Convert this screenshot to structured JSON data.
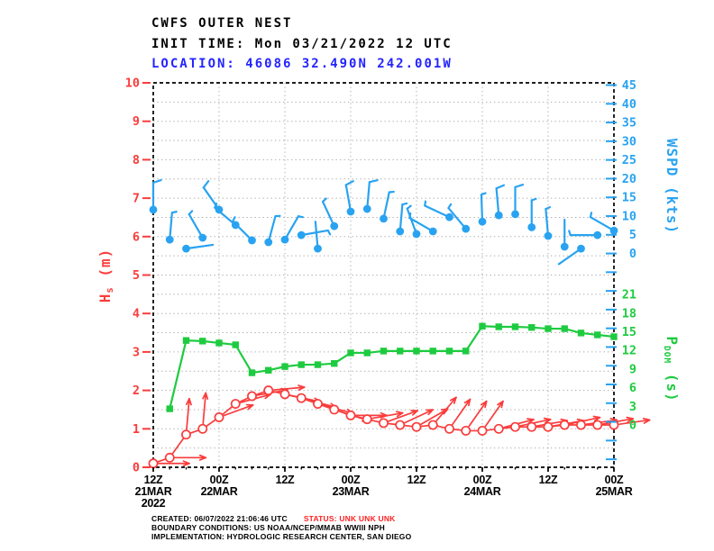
{
  "header": {
    "title": "CWFS OUTER NEST",
    "init_time": "INIT TIME: Mon 03/21/2022 12 UTC",
    "location_label": "LOCATION: ",
    "station_id": "46086",
    "coords": " 32.490N 242.001W"
  },
  "footer": {
    "created": "CREATED: 06/07/2022 21:06:46 UTC",
    "status": "STATUS: UNK UNK UNK",
    "boundary": "BOUNDARY CONDITIONS: US NOAA/NCEP/MMAB WWIII NPH",
    "implementation": "IMPLEMENTATION: HYDROLOGIC RESEARCH CENTER, SAN DIEGO"
  },
  "colors": {
    "hs_red": "#fa3c3c",
    "wspd_cyan": "#29a3f1",
    "pdom_green": "#1ecb40",
    "location_blue": "#2424ff",
    "status_red": "#ff2222",
    "grid_gray": "#aaaaaa",
    "frame_black": "#000000"
  },
  "chart_data": {
    "type": "line",
    "title": "CWFS OUTER NEST",
    "x_axis": {
      "range_hours": [
        0,
        84
      ],
      "minor_tick_hours": 3,
      "ticks": [
        {
          "hour": 0,
          "z": "12Z",
          "date": "21MAR",
          "year": "2022"
        },
        {
          "hour": 12,
          "z": "00Z",
          "date": "22MAR",
          "year": ""
        },
        {
          "hour": 24,
          "z": "12Z",
          "date": "",
          "year": ""
        },
        {
          "hour": 36,
          "z": "00Z",
          "date": "23MAR",
          "year": ""
        },
        {
          "hour": 48,
          "z": "12Z",
          "date": "",
          "year": ""
        },
        {
          "hour": 60,
          "z": "00Z",
          "date": "24MAR",
          "year": ""
        },
        {
          "hour": 72,
          "z": "12Z",
          "date": "",
          "year": ""
        },
        {
          "hour": 84,
          "z": "00Z",
          "date": "25MAR",
          "year": ""
        }
      ]
    },
    "left_axis": {
      "label_main": "H",
      "label_sub": "s",
      "label_units": " (m)",
      "range": [
        0,
        10
      ],
      "ticks": [
        "0",
        "1",
        "2",
        "3",
        "4",
        "5",
        "6",
        "7",
        "8",
        "9",
        "10"
      ]
    },
    "right_axis_wspd": {
      "label": "WSPD (kts)",
      "range": [
        0,
        45
      ],
      "ticks": [
        "0",
        "5",
        "10",
        "15",
        "20",
        "25",
        "30",
        "35",
        "40",
        "45"
      ]
    },
    "right_axis_pdom": {
      "label_main": "P",
      "label_sub": "DOM",
      "label_units": " (s)",
      "range": [
        0,
        21
      ],
      "ticks": [
        "0",
        "3",
        "6",
        "9",
        "12",
        "15",
        "18",
        "21"
      ]
    },
    "series": [
      {
        "name": "significant_wave_height",
        "units": "m",
        "axis": "hs",
        "marker": "open-circle",
        "style": "line-with-direction-arrows",
        "hours": [
          0,
          3,
          6,
          9,
          12,
          15,
          18,
          21,
          24,
          27,
          30,
          33,
          36,
          39,
          42,
          45,
          48,
          51,
          54,
          57,
          60,
          63,
          66,
          69,
          72,
          75,
          78,
          81,
          84
        ],
        "values": [
          0.1,
          0.25,
          0.85,
          1.0,
          1.3,
          1.65,
          1.85,
          2.0,
          1.9,
          1.8,
          1.65,
          1.5,
          1.35,
          1.25,
          1.15,
          1.1,
          1.05,
          1.1,
          1.0,
          0.95,
          0.95,
          1.0,
          1.05,
          1.05,
          1.05,
          1.1,
          1.1,
          1.1,
          1.1
        ],
        "arrow_deg": [
          0,
          0,
          85,
          85,
          20,
          15,
          10,
          5,
          -12,
          -15,
          -15,
          -18,
          0,
          10,
          20,
          25,
          30,
          50,
          55,
          55,
          55,
          15,
          12,
          10,
          10,
          12,
          8,
          10,
          8
        ]
      },
      {
        "name": "wind_speed",
        "units": "kts",
        "axis": "wspd",
        "marker": "dot",
        "style": "wind-barbs",
        "hours": [
          0,
          3,
          6,
          9,
          12,
          15,
          18,
          21,
          24,
          27,
          30,
          33,
          36,
          39,
          42,
          45,
          48,
          51,
          54,
          57,
          60,
          63,
          66,
          69,
          72,
          75,
          78,
          81,
          84
        ],
        "values": [
          11.7,
          3.7,
          1.3,
          4.2,
          11.7,
          7.6,
          3.5,
          3.0,
          3.7,
          4.9,
          1.3,
          7.3,
          11.2,
          11.9,
          9.3,
          5.9,
          5.2,
          5.9,
          9.7,
          6.6,
          8.5,
          10.2,
          10.5,
          7.0,
          4.7,
          1.8,
          1.3,
          4.9,
          6.1
        ],
        "barb_deg": [
          90,
          85,
          8,
          120,
          125,
          140,
          135,
          75,
          60,
          10,
          95,
          115,
          100,
          85,
          78,
          85,
          110,
          150,
          155,
          130,
          92,
          95,
          90,
          90,
          95,
          90,
          215,
          180,
          150
        ]
      },
      {
        "name": "dominant_period",
        "units": "s",
        "axis": "pdom",
        "marker": "square",
        "style": "line",
        "hours": [
          3,
          6,
          9,
          12,
          15,
          18,
          21,
          24,
          27,
          30,
          33,
          36,
          39,
          42,
          45,
          48,
          51,
          54,
          57,
          60,
          63,
          66,
          69,
          72,
          75,
          78,
          81,
          84
        ],
        "values": [
          2.6,
          13.6,
          13.5,
          13.2,
          12.9,
          8.4,
          8.8,
          9.4,
          9.7,
          9.7,
          9.9,
          11.6,
          11.6,
          11.9,
          11.9,
          11.9,
          11.9,
          11.9,
          11.9,
          15.9,
          15.8,
          15.8,
          15.7,
          15.5,
          15.5,
          14.8,
          14.5,
          14.2
        ]
      }
    ]
  }
}
